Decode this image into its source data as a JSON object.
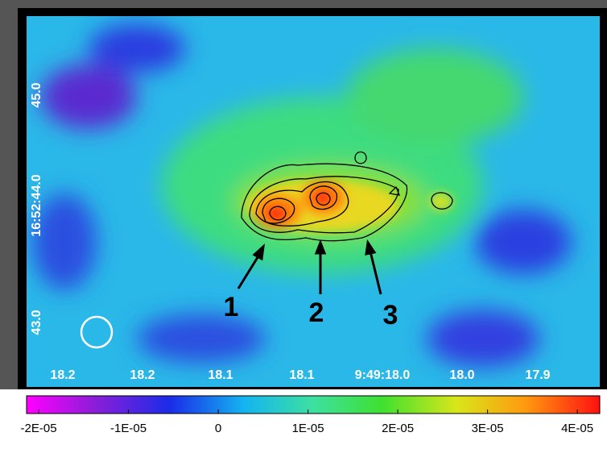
{
  "chart_data": {
    "type": "image",
    "x_tick_labels": [
      "18.2",
      "18.2",
      "18.1",
      "18.1",
      "9:49:18.0",
      "18.0",
      "17.9"
    ],
    "y_tick_labels": [
      "45.0",
      "16:52:44.0",
      "43.0"
    ],
    "annotations": [
      "1",
      "2",
      "3"
    ],
    "colorbar": {
      "lim": [
        -2.135e-05,
        4.25e-05
      ],
      "ticks": [
        {
          "value": -2e-05,
          "label": "-2E-05"
        },
        {
          "value": -1e-05,
          "label": "-1E-05"
        },
        0,
        {
          "value": 1e-05,
          "label": "1E-05"
        },
        {
          "value": 2e-05,
          "label": "2E-05"
        },
        {
          "value": 3e-05,
          "label": "3E-05"
        },
        {
          "value": 4e-05,
          "label": "4E-05"
        }
      ]
    }
  }
}
